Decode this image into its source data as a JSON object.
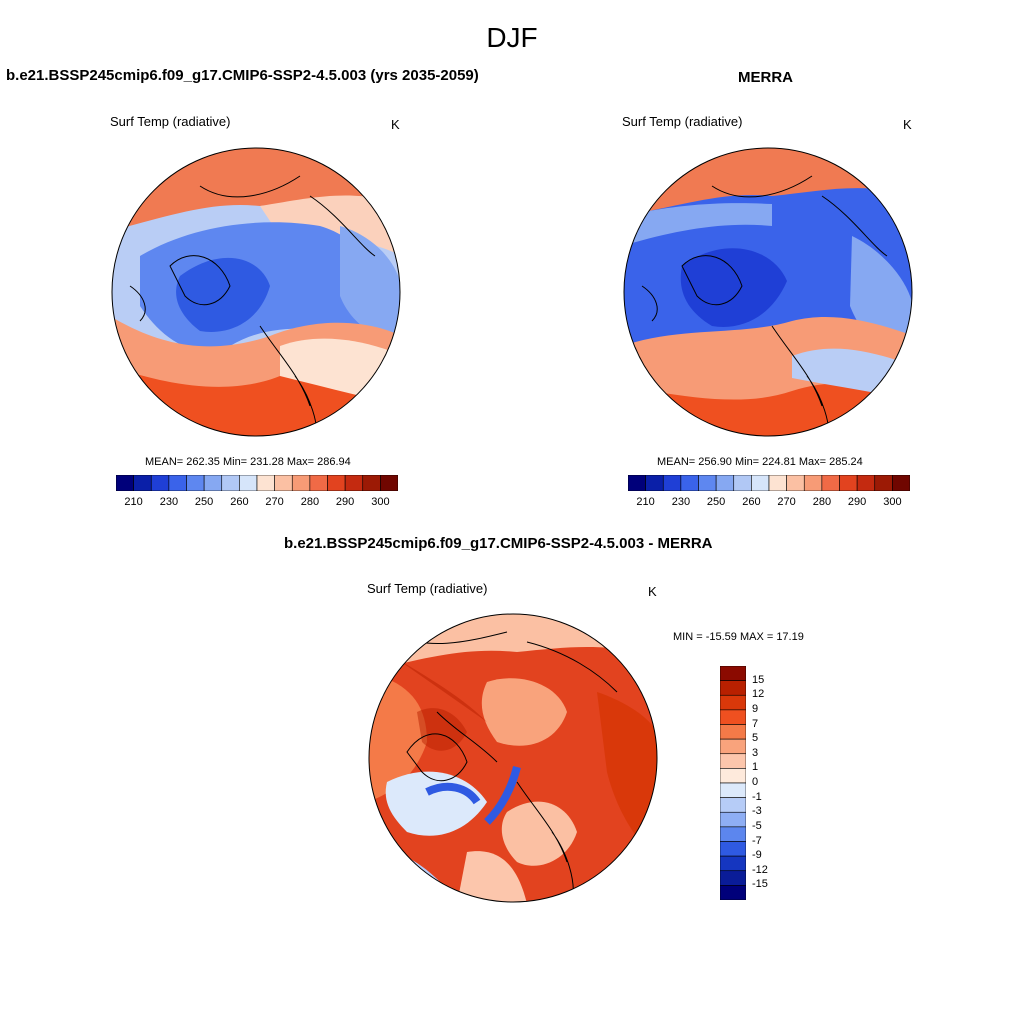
{
  "figure": {
    "season": "DJF"
  },
  "panels": {
    "model": {
      "title": "b.e21.BSSP245cmip6.f09_g17.CMIP6-SSP2-4.5.003 (yrs 2035-2059)",
      "variable": "Surf Temp (radiative)",
      "units": "K",
      "stats": "MEAN= 262.35  Min= 231.28  Max= 286.94"
    },
    "obs": {
      "title": "MERRA",
      "variable": "Surf Temp (radiative)",
      "units": "K",
      "stats": "MEAN= 256.90  Min= 224.81  Max= 285.24"
    },
    "diff": {
      "title": "b.e21.BSSP245cmip6.f09_g17.CMIP6-SSP2-4.5.003 - MERRA",
      "variable": "Surf Temp (radiative)",
      "units": "K",
      "stats": "MIN = -15.59 MAX =  17.19"
    }
  },
  "colorbars": {
    "abs": {
      "tick_labels": [
        "210",
        "230",
        "250",
        "260",
        "270",
        "280",
        "290",
        "300"
      ],
      "colors": [
        "#00007a",
        "#0a1fa8",
        "#1f3fd6",
        "#3a63ea",
        "#5e87f0",
        "#86a8f2",
        "#b1c8f5",
        "#d6e5fa",
        "#fde3d2",
        "#fbc0a3",
        "#f79b76",
        "#f06a46",
        "#e2431f",
        "#c42a10",
        "#9c1a05",
        "#700600"
      ]
    },
    "diff": {
      "labels": [
        "15",
        "12",
        "9",
        "7",
        "5",
        "3",
        "1",
        "0",
        "-1",
        "-3",
        "-5",
        "-7",
        "-9",
        "-12",
        "-15"
      ],
      "colors": [
        "#8b0a00",
        "#b82000",
        "#d9380a",
        "#ef5020",
        "#f47a48",
        "#f9a37c",
        "#fcc6ac",
        "#feeadc",
        "#dce9fb",
        "#b6ccf7",
        "#8eaef4",
        "#5c86ee",
        "#2f5ae2",
        "#1536c0",
        "#0a1c98",
        "#00007a"
      ]
    }
  },
  "colors": {
    "warm": "#f06a46",
    "warm_light": "#fbc0a3",
    "cold": "#3a63ea",
    "cold_light": "#b1c8f5"
  }
}
